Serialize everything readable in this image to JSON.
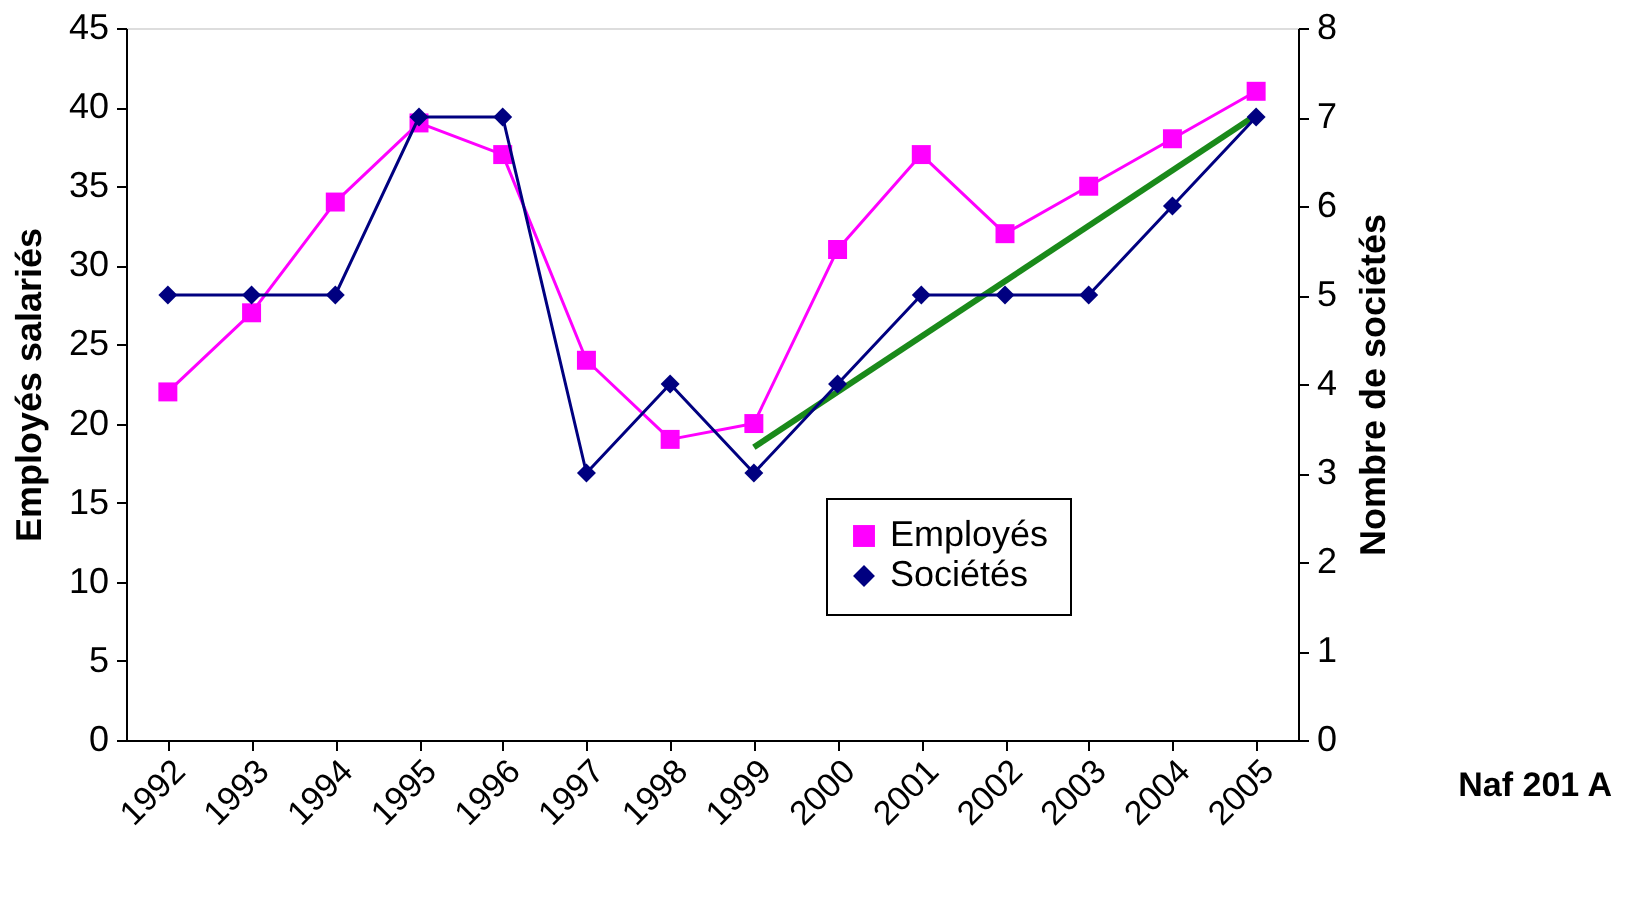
{
  "chart_data": {
    "type": "line",
    "categories": [
      "1992",
      "1993",
      "1994",
      "1995",
      "1996",
      "1997",
      "1998",
      "1999",
      "2000",
      "2001",
      "2002",
      "2003",
      "2004",
      "2005"
    ],
    "ylabel": "Employés salariés",
    "y2label": "Nombre de sociétés",
    "ylim": [
      0,
      45
    ],
    "yticks": [
      0,
      5,
      10,
      15,
      20,
      25,
      30,
      35,
      40,
      45
    ],
    "y2lim": [
      0,
      8
    ],
    "y2ticks": [
      0,
      1,
      2,
      3,
      4,
      5,
      6,
      7,
      8
    ],
    "series": [
      {
        "name": "Employés",
        "color": "#ff00ff",
        "marker": "square",
        "values": [
          22,
          27,
          34,
          39,
          37,
          24,
          19,
          20,
          31,
          37,
          32,
          35,
          38,
          41
        ]
      },
      {
        "name": "Sociétés",
        "color": "#000080",
        "marker": "diamond",
        "axis": "y2",
        "values": [
          5,
          5,
          5,
          7,
          7,
          3,
          4,
          3,
          4,
          5,
          5,
          5,
          6,
          7
        ]
      },
      {
        "type": "line",
        "color": "#1a8a1a",
        "marker": "none",
        "values": [
          null,
          null,
          null,
          null,
          null,
          null,
          null,
          18.5,
          null,
          null,
          null,
          null,
          null,
          39.5
        ]
      }
    ],
    "annotations": [
      "Naf 201 A"
    ],
    "legend": "bottom right",
    "grid": false
  }
}
